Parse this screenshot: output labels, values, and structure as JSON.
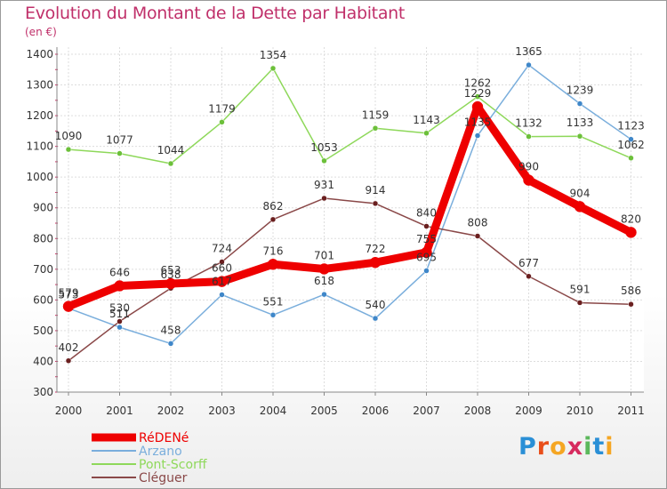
{
  "header": {
    "title": "Evolution du Montant de la Dette par Habitant",
    "unit": "(en €)"
  },
  "logo": {
    "letters": [
      "P",
      "r",
      "o",
      "x",
      "i",
      "t",
      "i"
    ],
    "colors": [
      "#2a8fd6",
      "#e94f1b",
      "#f5a623",
      "#d62a5e",
      "#5cb85c",
      "#2a8fd6",
      "#f5a623"
    ]
  },
  "chart_data": {
    "type": "line",
    "x": [
      "2000",
      "2001",
      "2002",
      "2003",
      "2004",
      "2005",
      "2006",
      "2007",
      "2008",
      "2009",
      "2010",
      "2011"
    ],
    "ylim": [
      300,
      1400
    ],
    "yticks": [
      300,
      400,
      500,
      600,
      700,
      800,
      900,
      1000,
      1100,
      1200,
      1300,
      1400
    ],
    "grid": true,
    "legend_position": "bottom-left",
    "series": [
      {
        "name": "Pont-Scorff",
        "color": "#8ed85a",
        "marker": "#6cc03a",
        "width": 1.5,
        "values": [
          1090,
          1077,
          1044,
          1179,
          1354,
          1053,
          1159,
          1143,
          1262,
          1132,
          1133,
          1062
        ],
        "labels": [
          "1090",
          "1077",
          "1044",
          "1179",
          "1354",
          "1053",
          "1159",
          "1143",
          "1262",
          "1132",
          "1133",
          "1062"
        ]
      },
      {
        "name": "Arzano",
        "color": "#7aaedc",
        "marker": "#3f87c9",
        "width": 1.5,
        "values": [
          573,
          511,
          458,
          617,
          551,
          618,
          540,
          695,
          1135,
          1365,
          1239,
          1123
        ],
        "labels": [
          "573",
          "511",
          "458",
          "617",
          "551",
          "618",
          "540",
          "695",
          "1135",
          "1365",
          "1239",
          "1123"
        ]
      },
      {
        "name": "Cléguer",
        "color": "#8a4848",
        "marker": "#6a1f1f",
        "width": 1.5,
        "values": [
          402,
          530,
          638,
          724,
          862,
          931,
          914,
          840,
          808,
          677,
          591,
          586
        ],
        "labels": [
          "402",
          "530",
          "638",
          "724",
          "862",
          "931",
          "914",
          "840",
          "808",
          "677",
          "591",
          "586"
        ]
      },
      {
        "name": "RéDENé",
        "color": "#ee0000",
        "marker": "#ee0000",
        "width": 9,
        "values": [
          579,
          646,
          653,
          660,
          716,
          701,
          722,
          755,
          1229,
          990,
          904,
          820
        ],
        "labels": [
          "579",
          "646",
          "653",
          "660",
          "716",
          "701",
          "722",
          "755",
          "1229",
          "990",
          "904",
          "820"
        ]
      }
    ],
    "legend": [
      {
        "name": "RéDENé",
        "color": "#ee0000",
        "width": 9
      },
      {
        "name": "Arzano",
        "color": "#7aaedc",
        "width": 2
      },
      {
        "name": "Pont-Scorff",
        "color": "#8ed85a",
        "width": 2
      },
      {
        "name": "Cléguer",
        "color": "#8a4848",
        "width": 2
      }
    ]
  }
}
